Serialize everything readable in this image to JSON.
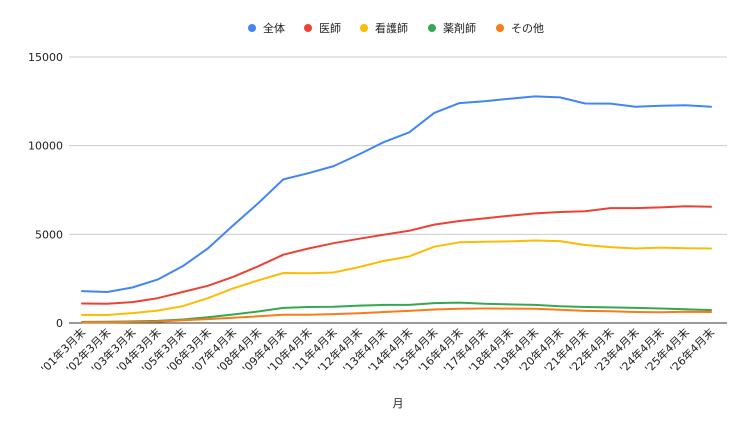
{
  "chart_data": {
    "type": "line",
    "title": "",
    "xlabel": "月",
    "ylabel": "",
    "ylim": [
      0,
      15000
    ],
    "yticks": [
      "0",
      "5000",
      "10000",
      "15000"
    ],
    "grid": true,
    "legend_position": "top",
    "categories": [
      "'01年3月末",
      "'02年3月末",
      "'03年3月末",
      "'04年3月末",
      "'05年3月末",
      "'06年3月末",
      "'07年4月末",
      "'08年4月末",
      "'09年4月末",
      "'10年4月末",
      "'11年4月末",
      "'12年4月末",
      "'13年4月末",
      "'14年4月末",
      "'15年4月末",
      "'16年4月末",
      "'17年4月末",
      "'18年4月末",
      "'19年4月末",
      "'20年4月末",
      "'21年4月末",
      "'22年4月末",
      "'23年4月末",
      "'24年4月末",
      "'25年4月末",
      "'26年4月末"
    ],
    "series": [
      {
        "name": "全体",
        "color": "#4285f4",
        "values": [
          1800,
          1750,
          2000,
          2450,
          3200,
          4200,
          5500,
          6750,
          8100,
          8450,
          8850,
          9500,
          10200,
          10750,
          11850,
          12400,
          12500,
          12650,
          12780,
          12720,
          12380,
          12370,
          12200,
          12250,
          12280,
          12200
        ]
      },
      {
        "name": "医師",
        "color": "#ea4335",
        "values": [
          1100,
          1080,
          1180,
          1400,
          1750,
          2100,
          2600,
          3200,
          3850,
          4200,
          4500,
          4750,
          4980,
          5200,
          5550,
          5750,
          5900,
          6050,
          6180,
          6260,
          6300,
          6480,
          6480,
          6520,
          6580,
          6550
        ]
      },
      {
        "name": "看護師",
        "color": "#fbbc04",
        "values": [
          450,
          450,
          560,
          700,
          950,
          1400,
          1950,
          2400,
          2820,
          2800,
          2850,
          3150,
          3500,
          3750,
          4300,
          4550,
          4580,
          4600,
          4650,
          4620,
          4400,
          4280,
          4200,
          4250,
          4220,
          4200
        ]
      },
      {
        "name": "薬剤師",
        "color": "#34a853",
        "values": [
          60,
          70,
          90,
          120,
          200,
          320,
          480,
          650,
          850,
          900,
          920,
          980,
          1020,
          1020,
          1120,
          1150,
          1080,
          1050,
          1020,
          950,
          900,
          880,
          850,
          820,
          780,
          730
        ]
      },
      {
        "name": "その他",
        "color": "#fa7b17",
        "values": [
          40,
          40,
          60,
          80,
          150,
          220,
          300,
          380,
          470,
          470,
          500,
          550,
          620,
          680,
          760,
          800,
          820,
          810,
          800,
          750,
          680,
          660,
          620,
          610,
          640,
          620
        ]
      }
    ]
  }
}
